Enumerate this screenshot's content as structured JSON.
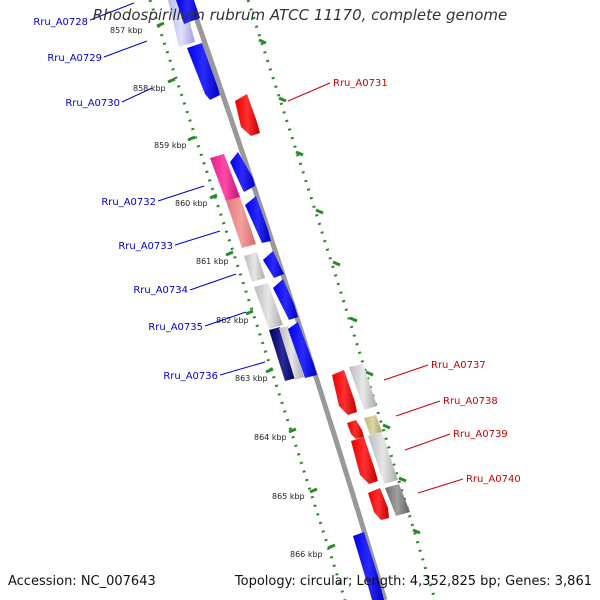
{
  "title": "Rhodospirillum rubrum ATCC 11170, complete genome",
  "footer": {
    "accession": "Accession: NC_007643",
    "stats": "Topology: circular; Length: 4,352,825 bp; Genes: 3,861"
  },
  "colors": {
    "forward_label": "#0000cc",
    "reverse_label": "#cc0000",
    "tick_green": "#228822",
    "backbone": "#999999"
  },
  "kbp_labels": [
    "857 kbp",
    "858 kbp",
    "859 kbp",
    "860 kbp",
    "861 kbp",
    "862 kbp",
    "863 kbp",
    "864 kbp",
    "865 kbp",
    "866 kbp"
  ],
  "forward_genes": [
    "Rru_A0728",
    "Rru_A0729",
    "Rru_A0730",
    "Rru_A0732",
    "Rru_A0733",
    "Rru_A0734",
    "Rru_A0735",
    "Rru_A0736"
  ],
  "reverse_genes": [
    "Rru_A0731",
    "Rru_A0737",
    "Rru_A0738",
    "Rru_A0739",
    "Rru_A0740"
  ]
}
